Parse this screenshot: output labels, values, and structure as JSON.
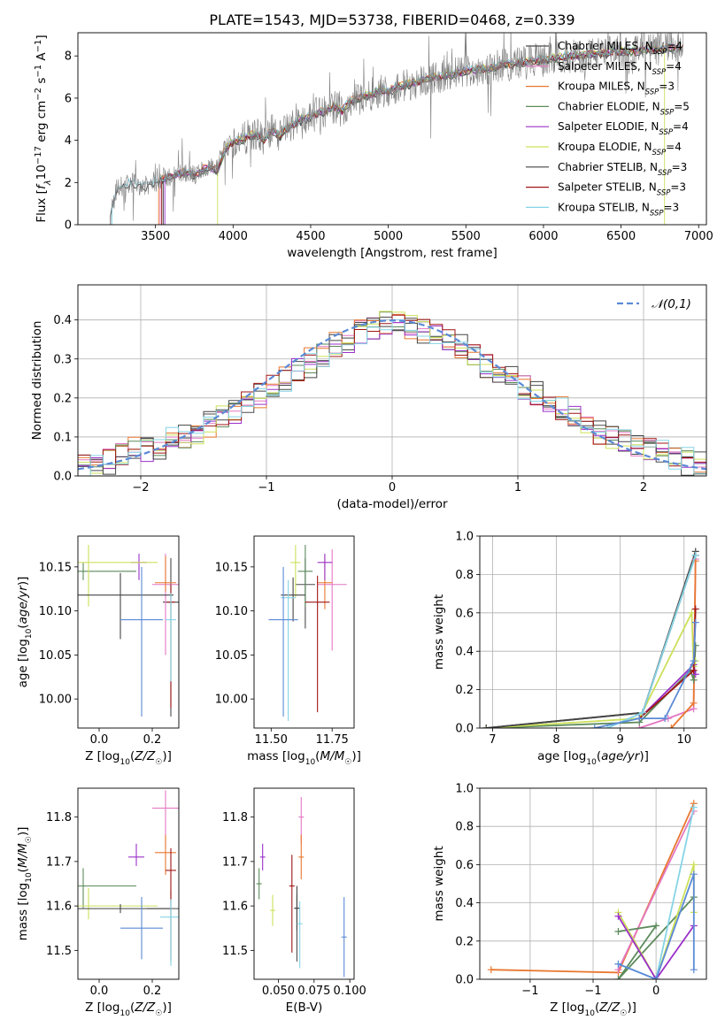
{
  "figure": {
    "title": "PLATE=1543, MJD=53738, FIBERID=0468, z=0.339"
  },
  "models": [
    {
      "name": "Chabrier MILES, N_SSP=4",
      "color": "#4a4a4a"
    },
    {
      "name": "Salpeter MILES, N_SSP=4",
      "color": "#e377c2"
    },
    {
      "name": "Kroupa MILES, N_SSP=3",
      "color": "#e8772e"
    },
    {
      "name": "Chabrier ELODIE, N_SSP=5",
      "color": "#5b8a5b"
    },
    {
      "name": "Salpeter ELODIE, N_SSP=4",
      "color": "#9b30c9"
    },
    {
      "name": "Kroupa ELODIE, N_SSP=4",
      "color": "#cde05a"
    },
    {
      "name": "Chabrier STELIB, N_SSP=3",
      "color": "#444444"
    },
    {
      "name": "Salpeter STELIB, N_SSP=3",
      "color": "#a01515"
    },
    {
      "name": "Kroupa STELIB, N_SSP=3",
      "color": "#86d4e6"
    }
  ],
  "chart_data": [
    {
      "id": "spectrum",
      "type": "line",
      "xlabel": "wavelength [Angstrom, rest frame]",
      "ylabel": "Flux [f_λ 10^-17 erg cm^-2 s^-1 A^-1]",
      "xlim": [
        3000,
        7050
      ],
      "ylim": [
        0,
        9.1
      ],
      "xticks": [
        3500,
        4000,
        4500,
        5000,
        5500,
        6000,
        6500,
        7000
      ],
      "yticks": [
        0,
        2,
        4,
        6,
        8
      ],
      "legend_position": "right",
      "data_series": {
        "name": "data",
        "x": [
          3210,
          3250,
          3300,
          3350,
          3400,
          3450,
          3500,
          3550,
          3600,
          3650,
          3700,
          3750,
          3800,
          3850,
          3900,
          3950,
          4000,
          4050,
          4100,
          4150,
          4200,
          4250,
          4300,
          4350,
          4400,
          4450,
          4500,
          4550,
          4600,
          4650,
          4700,
          4750,
          4800,
          4850,
          4900,
          4950,
          5000,
          5050,
          5100,
          5150,
          5200,
          5250,
          5300,
          5350,
          5400,
          5450,
          5500,
          5550,
          5600,
          5650,
          5700,
          5750,
          5800,
          5850,
          5900,
          5950,
          6000,
          6050,
          6100,
          6150,
          6200,
          6250,
          6300,
          6350,
          6400,
          6450,
          6500,
          6550,
          6600,
          6650,
          6700,
          6750,
          6800,
          6850,
          6900
        ],
        "y": [
          0.5,
          1.7,
          1.9,
          2.0,
          1.9,
          1.8,
          2.1,
          2.2,
          2.3,
          2.4,
          2.5,
          2.3,
          2.6,
          2.7,
          2.6,
          3.6,
          3.9,
          4.0,
          4.2,
          4.3,
          4.0,
          4.5,
          4.2,
          4.6,
          4.8,
          5.0,
          5.1,
          5.3,
          5.4,
          5.6,
          5.4,
          5.8,
          6.0,
          6.1,
          6.2,
          6.4,
          6.3,
          6.5,
          6.6,
          6.7,
          6.8,
          6.9,
          7.0,
          7.0,
          7.1,
          7.2,
          7.3,
          7.3,
          7.4,
          7.4,
          7.5,
          7.6,
          7.6,
          7.7,
          7.7,
          7.8,
          7.8,
          7.9,
          7.9,
          8.0,
          8.0,
          8.0,
          8.1,
          8.1,
          8.1,
          8.2,
          8.2,
          8.2,
          8.2,
          8.3,
          8.3,
          8.3,
          8.4,
          8.4,
          8.4
        ]
      }
    },
    {
      "id": "residuals",
      "type": "histogram",
      "xlabel": "(data-model)/error",
      "ylabel": "Normed distribution",
      "xlim": [
        -2.5,
        2.5
      ],
      "ylim": [
        0,
        0.49
      ],
      "xticks": [
        -2,
        -1,
        0,
        1,
        2
      ],
      "yticks": [
        0.0,
        0.1,
        0.2,
        0.3,
        0.4
      ],
      "grid": true,
      "bin_width": 0.1,
      "reference": {
        "name": "𝒩(0,1)",
        "color": "#5b8ad6",
        "legend_position": "top-right"
      },
      "hist_center": [
        0.028,
        0.03,
        0.04,
        0.05,
        0.06,
        0.07,
        0.08,
        0.09,
        0.1,
        0.11,
        0.13,
        0.15,
        0.17,
        0.19,
        0.21,
        0.23,
        0.25,
        0.27,
        0.29,
        0.31,
        0.33,
        0.35,
        0.37,
        0.38,
        0.395,
        0.4,
        0.39,
        0.38,
        0.37,
        0.35,
        0.33,
        0.31,
        0.29,
        0.27,
        0.25,
        0.23,
        0.21,
        0.19,
        0.17,
        0.15,
        0.13,
        0.11,
        0.1,
        0.09,
        0.08,
        0.07,
        0.06,
        0.05,
        0.04,
        0.035
      ]
    },
    {
      "id": "Z-age",
      "type": "errorbar",
      "xlabel": "Z [log10(Z/Z☉)]",
      "ylabel": "age [log10(age/yr)]",
      "xlim": [
        -0.08,
        0.3
      ],
      "ylim": [
        9.967,
        10.185
      ],
      "xticks": [
        0.0,
        0.2
      ],
      "yticks": [
        10.0,
        10.05,
        10.1,
        10.15
      ],
      "points": [
        {
          "model": 0,
          "x": 0.27,
          "y": 10.11,
          "xerr": 0.03,
          "yerr": [
            0.13,
            0.05
          ]
        },
        {
          "model": 1,
          "x": 0.25,
          "y": 10.13,
          "xerr": 0.05,
          "yerr": [
            0.08,
            0.035
          ]
        },
        {
          "model": 2,
          "x": 0.25,
          "y": 10.132,
          "xerr": 0.04,
          "yerr": [
            0.01,
            0.03
          ]
        },
        {
          "model": 3,
          "x": -0.06,
          "y": 10.145,
          "xerr": 0.2,
          "yerr": [
            0.01,
            0.01
          ]
        },
        {
          "model": 4,
          "x": 0.15,
          "y": 10.155,
          "xerr": 0.03,
          "yerr": [
            0.02,
            0.01
          ]
        },
        {
          "model": 5,
          "x": -0.04,
          "y": 10.155,
          "xerr": 0.26,
          "yerr": [
            0.05,
            0.02
          ]
        },
        {
          "model": 6,
          "x": 0.08,
          "y": 10.118,
          "xerr": 0.2,
          "yerr": [
            0.05,
            0.025
          ]
        },
        {
          "model": 7,
          "x": 0.27,
          "y": 10.11,
          "xerr": 0.015,
          "yerr": [
            0.12,
            0.02
          ]
        },
        {
          "model": 8,
          "x": 0.27,
          "y": 10.09,
          "xerr": 0.02,
          "yerr": [
            0.07,
            0.03
          ]
        },
        {
          "model": "mean",
          "x": 0.16,
          "y": 10.09,
          "xerr": 0.08,
          "yerr": [
            0.11,
            0.06
          ]
        }
      ]
    },
    {
      "id": "mass-age",
      "type": "errorbar",
      "xlabel": "mass [log10(M/M☉)]",
      "xlim": [
        11.43,
        11.84
      ],
      "ylim": [
        9.967,
        10.185
      ],
      "xticks": [
        11.5,
        11.75
      ],
      "yticks": [
        10.0,
        10.05,
        10.1,
        10.15
      ],
      "points": [
        {
          "model": 0,
          "x": 11.64,
          "y": 10.13,
          "xerr": 0.04,
          "yerr": [
            0.05,
            0.03
          ]
        },
        {
          "model": 1,
          "x": 11.75,
          "y": 10.13,
          "xerr": 0.06,
          "yerr": [
            0.075,
            0.04
          ]
        },
        {
          "model": 2,
          "x": 11.72,
          "y": 10.132,
          "xerr": 0.03,
          "yerr": [
            0.03,
            0.03
          ]
        },
        {
          "model": 3,
          "x": 11.64,
          "y": 10.145,
          "xerr": 0.03,
          "yerr": [
            0.04,
            0.03
          ]
        },
        {
          "model": 4,
          "x": 11.72,
          "y": 10.155,
          "xerr": 0.03,
          "yerr": [
            0.02,
            0.01
          ]
        },
        {
          "model": 5,
          "x": 11.6,
          "y": 10.155,
          "xerr": 0.02,
          "yerr": [
            0.04,
            0.02
          ]
        },
        {
          "model": 6,
          "x": 11.59,
          "y": 10.118,
          "xerr": 0.05,
          "yerr": [
            0.03,
            0.02
          ]
        },
        {
          "model": 7,
          "x": 11.69,
          "y": 10.11,
          "xerr": 0.05,
          "yerr": [
            0.125,
            0.03
          ]
        },
        {
          "model": 8,
          "x": 11.57,
          "y": 10.115,
          "xerr": 0.03,
          "yerr": [
            0.14,
            0.02
          ]
        },
        {
          "model": "mean",
          "x": 11.55,
          "y": 10.09,
          "xerr": 0.06,
          "yerr": [
            0.11,
            0.06
          ]
        }
      ]
    },
    {
      "id": "weight-age",
      "type": "line",
      "xlabel": "age  [log10(age/yr)]",
      "ylabel": "mass weight",
      "xlim": [
        6.8,
        10.35
      ],
      "ylim": [
        0,
        1.0
      ],
      "xticks": [
        7,
        8,
        9,
        10
      ],
      "yticks": [
        0.0,
        0.2,
        0.4,
        0.6,
        0.8,
        1.0
      ],
      "grid": true,
      "series": [
        {
          "model": 0,
          "x": [
            6.9,
            9.35,
            10.18
          ],
          "y": [
            0.0,
            0.08,
            0.92
          ]
        },
        {
          "model": 1,
          "x": [
            9.3,
            9.75,
            10.15,
            10.18
          ],
          "y": [
            0.0,
            0.05,
            0.1,
            0.88
          ]
        },
        {
          "model": 2,
          "x": [
            9.8,
            10.15,
            10.18
          ],
          "y": [
            0.0,
            0.13,
            0.87
          ]
        },
        {
          "model": 3,
          "x": [
            6.9,
            9.3,
            10.1,
            10.15,
            10.18
          ],
          "y": [
            0.0,
            0.03,
            0.3,
            0.25,
            0.43
          ]
        },
        {
          "model": 4,
          "x": [
            9.3,
            10.15,
            10.18
          ],
          "y": [
            0.05,
            0.33,
            0.28
          ]
        },
        {
          "model": 5,
          "x": [
            6.9,
            9.3,
            10.12,
            10.15,
            10.18
          ],
          "y": [
            0.0,
            0.05,
            0.6,
            0.32,
            0.35
          ]
        },
        {
          "model": 6,
          "x": [
            6.9,
            9.35,
            10.18
          ],
          "y": [
            0.0,
            0.08,
            0.9
          ]
        },
        {
          "model": 7,
          "x": [
            9.3,
            10.15,
            10.18
          ],
          "y": [
            0.05,
            0.3,
            0.62
          ]
        },
        {
          "model": 8,
          "x": [
            8.8,
            9.35,
            10.18
          ],
          "y": [
            0.0,
            0.08,
            0.9
          ]
        },
        {
          "model": "mean",
          "x": [
            8.6,
            9.3,
            9.7,
            10.15,
            10.18
          ],
          "y": [
            0.0,
            0.05,
            0.05,
            0.35,
            0.55
          ]
        }
      ]
    },
    {
      "id": "Z-mass",
      "type": "errorbar",
      "xlabel": "Z [log10(Z/Z☉)]",
      "ylabel": "mass [log10(M/M☉)]",
      "xlim": [
        -0.08,
        0.3
      ],
      "ylim": [
        11.435,
        11.865
      ],
      "xticks": [
        0.0,
        0.2
      ],
      "yticks": [
        11.5,
        11.6,
        11.7,
        11.8
      ],
      "points": [
        {
          "model": 0,
          "x": 0.27,
          "y": 11.594,
          "xerr": 0.09,
          "yerr": [
            0.12,
            0.04
          ]
        },
        {
          "model": 1,
          "x": 0.25,
          "y": 11.82,
          "xerr": 0.05,
          "yerr": [
            0.09,
            0.04
          ]
        },
        {
          "model": 2,
          "x": 0.25,
          "y": 11.72,
          "xerr": 0.04,
          "yerr": [
            0.05,
            0.04
          ]
        },
        {
          "model": 3,
          "x": -0.06,
          "y": 11.645,
          "xerr": 0.2,
          "yerr": [
            0.05,
            0.04
          ]
        },
        {
          "model": 4,
          "x": 0.14,
          "y": 11.71,
          "xerr": 0.03,
          "yerr": [
            0.02,
            0.03
          ]
        },
        {
          "model": 5,
          "x": -0.04,
          "y": 11.6,
          "xerr": 0.26,
          "yerr": [
            0.03,
            0.04
          ]
        },
        {
          "model": 6,
          "x": 0.08,
          "y": 11.594,
          "xerr": 0.19,
          "yerr": [
            0.01,
            0.01
          ]
        },
        {
          "model": 7,
          "x": 0.27,
          "y": 11.68,
          "xerr": 0.02,
          "yerr": [
            0.2,
            0.05
          ]
        },
        {
          "model": 8,
          "x": 0.27,
          "y": 11.575,
          "xerr": 0.04,
          "yerr": [
            0.11,
            0.04
          ]
        },
        {
          "model": "mean",
          "x": 0.16,
          "y": 11.55,
          "xerr": 0.08,
          "yerr": [
            0.07,
            0.07
          ]
        }
      ]
    },
    {
      "id": "ebv-mass",
      "type": "errorbar",
      "xlabel": "E(B-V)",
      "xlim": [
        0.033,
        0.103
      ],
      "ylim": [
        11.435,
        11.865
      ],
      "xticks": [
        0.05,
        0.075,
        0.1
      ],
      "xticklabels": [
        "0.050",
        "0.075",
        "0.100"
      ],
      "yticks": [
        11.5,
        11.6,
        11.7,
        11.8
      ],
      "points": [
        {
          "model": 0,
          "x": 0.063,
          "y": 11.595,
          "yerr": [
            0.12,
            0.03
          ]
        },
        {
          "model": 1,
          "x": 0.066,
          "y": 11.8,
          "yerr": [
            0.06,
            0.045
          ]
        },
        {
          "model": 2,
          "x": 0.066,
          "y": 11.71,
          "yerr": [
            0.05,
            0.05
          ]
        },
        {
          "model": 3,
          "x": 0.0365,
          "y": 11.65,
          "yerr": [
            0.035,
            0.035
          ]
        },
        {
          "model": 4,
          "x": 0.039,
          "y": 11.71,
          "yerr": [
            0.03,
            0.03
          ]
        },
        {
          "model": 5,
          "x": 0.046,
          "y": 11.59,
          "yerr": [
            0.035,
            0.035
          ]
        },
        {
          "model": 6,
          "x": 0.063,
          "y": 11.595,
          "yerr": [
            0.05,
            0.05
          ]
        },
        {
          "model": 7,
          "x": 0.0595,
          "y": 11.645,
          "yerr": [
            0.15,
            0.07
          ]
        },
        {
          "model": 8,
          "x": 0.065,
          "y": 11.56,
          "yerr": [
            0.1,
            0.05
          ]
        },
        {
          "model": "mean",
          "x": 0.096,
          "y": 11.53,
          "yerr": [
            0.09,
            0.09
          ]
        }
      ]
    },
    {
      "id": "weight-Z",
      "type": "line",
      "xlabel": "Z [log10(Z/Z☉)]",
      "ylabel": "mass weight",
      "xlim": [
        -1.4,
        0.4
      ],
      "ylim": [
        0,
        1.0
      ],
      "xticks": [
        -1.0,
        -0.5,
        0.0
      ],
      "yticks": [
        0.0,
        0.2,
        0.4,
        0.6,
        0.8,
        1.0
      ],
      "grid": true,
      "series": [
        {
          "model": 2,
          "x": [
            -1.31,
            -0.3,
            0.3
          ],
          "y": [
            0.05,
            0.035,
            0.92
          ]
        },
        {
          "model": 1,
          "x": [
            -0.3,
            0.3
          ],
          "y": [
            0.05,
            0.88
          ]
        },
        {
          "model": 3,
          "x": [
            -0.3,
            0.0,
            -0.3,
            0.3
          ],
          "y": [
            0.25,
            0.28,
            0.0,
            0.43
          ]
        },
        {
          "model": 5,
          "x": [
            -0.3,
            0.0,
            0.3,
            0.3
          ],
          "y": [
            0.35,
            0.0,
            0.6,
            0.35
          ]
        },
        {
          "model": 4,
          "x": [
            -0.3,
            0.0,
            0.3
          ],
          "y": [
            0.33,
            0.0,
            0.28
          ]
        },
        {
          "model": 8,
          "x": [
            -0.3,
            0.0,
            0.3
          ],
          "y": [
            0.08,
            0.0,
            0.9
          ]
        },
        {
          "model": "mean",
          "x": [
            -0.3,
            0.0,
            0.3,
            0.3
          ],
          "y": [
            0.08,
            0.0,
            0.55,
            0.05
          ]
        }
      ]
    }
  ]
}
